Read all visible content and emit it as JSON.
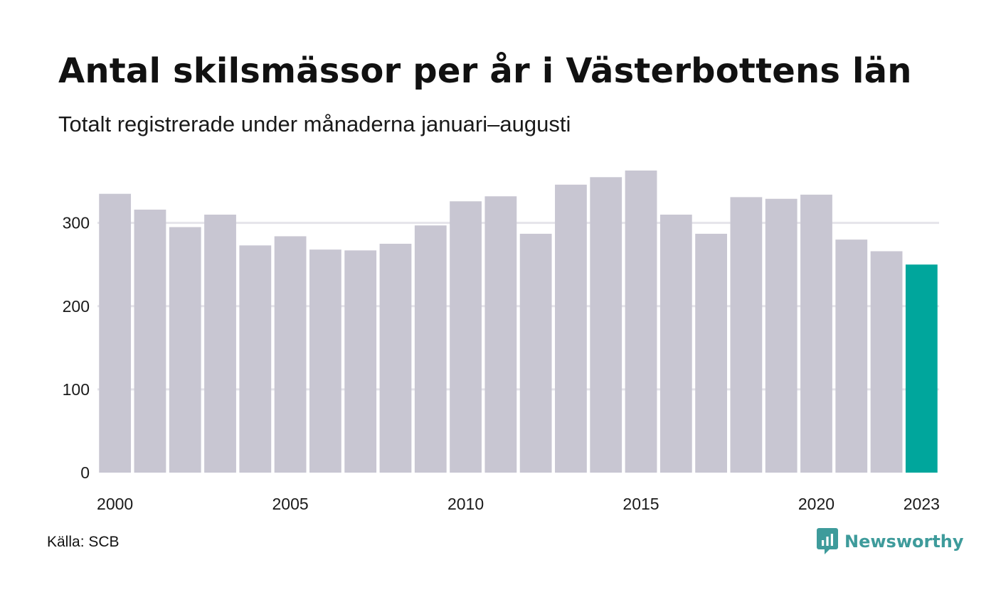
{
  "title": "Antal skilsmässor per år i Västerbottens län",
  "subtitle": "Totalt registrerade under månaderna januari–augusti",
  "source": "Källa: SCB",
  "brand": {
    "name": "Newsworthy",
    "icon": "newsworthy-logo-icon",
    "color": "#3e9b9b"
  },
  "colors": {
    "bar": "#c8c6d2",
    "highlight": "#00a69c",
    "gridline": "#e5e4ea",
    "text": "#111111"
  },
  "chart_data": {
    "type": "bar",
    "title": "Antal skilsmässor per år i Västerbottens län",
    "subtitle": "Totalt registrerade under månaderna januari–augusti",
    "xlabel": "",
    "ylabel": "",
    "categories": [
      "2000",
      "2001",
      "2002",
      "2003",
      "2004",
      "2005",
      "2006",
      "2007",
      "2008",
      "2009",
      "2010",
      "2011",
      "2012",
      "2013",
      "2014",
      "2015",
      "2016",
      "2017",
      "2018",
      "2019",
      "2020",
      "2021",
      "2022",
      "2023"
    ],
    "values": [
      335,
      316,
      295,
      310,
      273,
      284,
      268,
      267,
      275,
      297,
      326,
      332,
      287,
      346,
      355,
      363,
      310,
      287,
      331,
      329,
      334,
      280,
      266,
      250
    ],
    "highlight_index": 23,
    "ylim": [
      0,
      380
    ],
    "yticks": [
      0,
      100,
      200,
      300
    ],
    "ytick_labels": [
      "0",
      "100",
      "200",
      "300"
    ],
    "xtick_labels": [
      {
        "index": 0,
        "label": "2000"
      },
      {
        "index": 5,
        "label": "2005"
      },
      {
        "index": 10,
        "label": "2010"
      },
      {
        "index": 15,
        "label": "2015"
      },
      {
        "index": 20,
        "label": "2020"
      },
      {
        "index": 23,
        "label": "2023"
      }
    ],
    "grid": true,
    "legend": "none"
  }
}
